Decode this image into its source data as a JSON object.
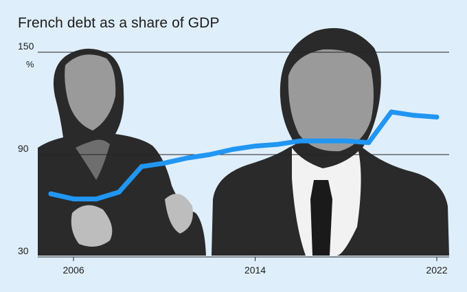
{
  "title": "French debt as a share of GDP",
  "colors": {
    "background": "#dfeefb",
    "line": "#2196f3",
    "photo_fill": "#2a2a2a",
    "gridline": "#222222"
  },
  "chart_data": {
    "type": "line",
    "title": "French debt as a share of GDP",
    "xlabel": "",
    "ylabel": "",
    "unit": "%",
    "ylim": [
      30,
      150
    ],
    "xlim": [
      2005,
      2022
    ],
    "grid": true,
    "y_ticks": [
      "150",
      "90",
      "30"
    ],
    "x_ticks": [
      "2006",
      "2014",
      "2022"
    ],
    "series": [
      {
        "x": [
          2005,
          2006,
          2007,
          2008,
          2009,
          2010,
          2011,
          2012,
          2013,
          2014,
          2015,
          2016,
          2017,
          2018,
          2019,
          2020,
          2021,
          2022
        ],
        "values": [
          67,
          64,
          64,
          68,
          83,
          85,
          88,
          90,
          93,
          95,
          96,
          98,
          98,
          98,
          97,
          115,
          113,
          112
        ]
      }
    ]
  },
  "photos": [
    {
      "icon": "woman-portrait-photo"
    },
    {
      "icon": "man-portrait-photo"
    }
  ]
}
